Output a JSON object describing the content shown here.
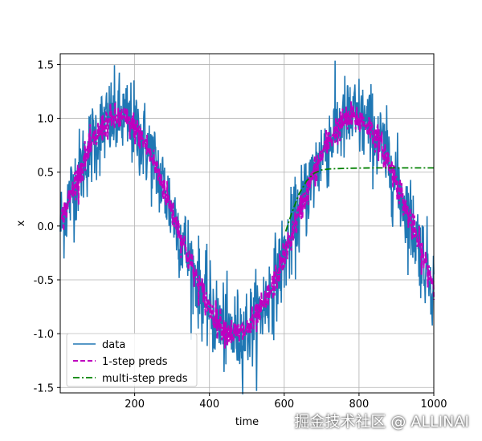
{
  "chart_data": {
    "type": "line",
    "title": "",
    "xlabel": "time",
    "ylabel": "x",
    "xlim": [
      1,
      1000
    ],
    "ylim": [
      -1.55,
      1.6
    ],
    "xticks": [
      200,
      400,
      600,
      800,
      1000
    ],
    "yticks": [
      1.5,
      1.0,
      0.5,
      0.0,
      -0.5,
      -1.0,
      -1.5
    ],
    "xtick_labels": [
      "200",
      "400",
      "600",
      "800",
      "1000"
    ],
    "ytick_labels": [
      "1.5",
      "1.0",
      "0.5",
      "0.0",
      "-0.5",
      "-1.0",
      "-1.5"
    ],
    "grid": true,
    "legend_position": "lower left",
    "series": [
      {
        "name": "data",
        "color": "#1f77b4",
        "style": "solid",
        "description_of_generation": "noisy sine",
        "x_range": [
          1,
          1000
        ],
        "function": "sin(0.01*x) + noise(sd 0.2)"
      },
      {
        "name": "1-step preds",
        "color": "#bf00bf",
        "style": "dashed",
        "x_range": [
          5,
          1000
        ],
        "function": "sin(0.01*x) + noise(sd 0.07)"
      },
      {
        "name": "multi-step preds",
        "color": "#008000",
        "style": "dashdot",
        "x": [
          604,
          620,
          640,
          660,
          680,
          700,
          720,
          760,
          800,
          850,
          900,
          950,
          1000
        ],
        "y": [
          -0.05,
          0.12,
          0.3,
          0.42,
          0.49,
          0.52,
          0.53,
          0.535,
          0.538,
          0.54,
          0.54,
          0.54,
          0.54
        ]
      }
    ]
  },
  "watermark": "掘金技术社区 @ ALLINAI"
}
